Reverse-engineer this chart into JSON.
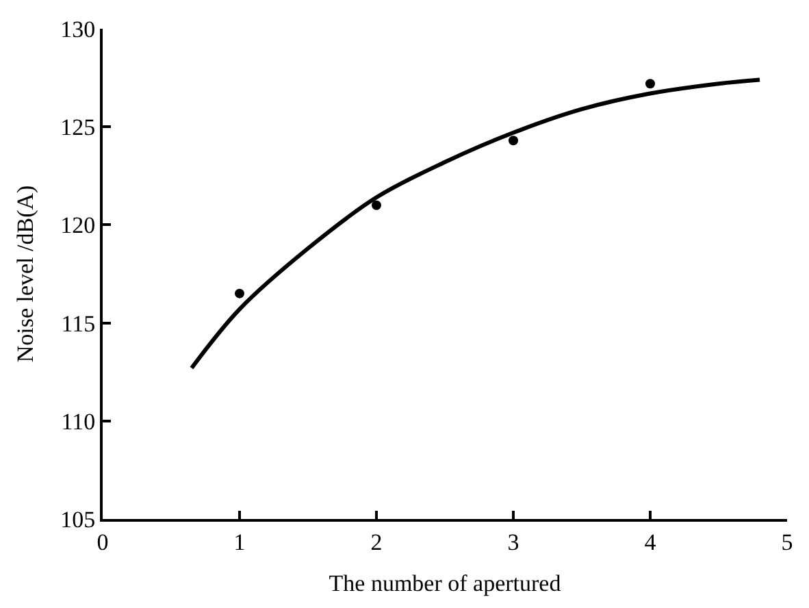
{
  "chart_data": {
    "type": "scatter",
    "xlabel": "The number of apertured",
    "ylabel": "Noise level /dB(A)",
    "xlim": [
      0,
      5
    ],
    "ylim": [
      105,
      130
    ],
    "xticks": [
      0,
      1,
      2,
      3,
      4,
      5
    ],
    "yticks": [
      105,
      110,
      115,
      120,
      125,
      130
    ],
    "series": [
      {
        "marker": "circle",
        "color": "#000000",
        "x": [
          1,
          2,
          3,
          4
        ],
        "values": [
          116.5,
          121.0,
          124.3,
          127.2
        ]
      },
      {
        "type": "line",
        "marker": "none",
        "line_style": "solid",
        "color": "#000000",
        "x": [
          0.65,
          1,
          1.5,
          2,
          2.5,
          3,
          3.5,
          4,
          4.5,
          4.8
        ],
        "values": [
          112.7,
          115.7,
          118.8,
          121.4,
          123.2,
          124.7,
          125.9,
          126.7,
          127.2,
          127.4
        ]
      }
    ]
  }
}
